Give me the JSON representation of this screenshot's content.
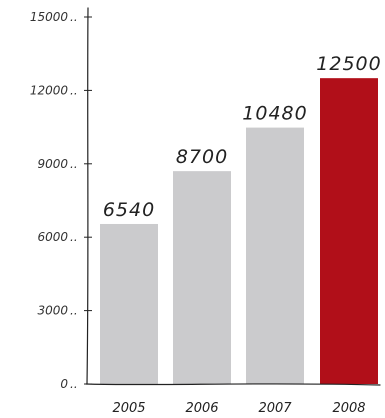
{
  "chart_data": {
    "type": "bar",
    "categories": [
      "2005",
      "2006",
      "2007",
      "2008"
    ],
    "values": [
      6540,
      8700,
      10480,
      12500
    ],
    "value_labels": [
      "6540",
      "8700",
      "10480",
      "12500"
    ],
    "yticks": [
      0,
      3000,
      6000,
      9000,
      12000,
      15000
    ],
    "ytick_labels": [
      "0",
      "3000",
      "6000",
      "9000",
      "12000",
      "15000"
    ],
    "ylim": [
      0,
      15000
    ],
    "grid": false,
    "legend": "none",
    "colors": {
      "bar": "#cbcbcd",
      "highlight_bar": "#b10f19",
      "axis": "#222222"
    },
    "highlight_index": 3
  }
}
